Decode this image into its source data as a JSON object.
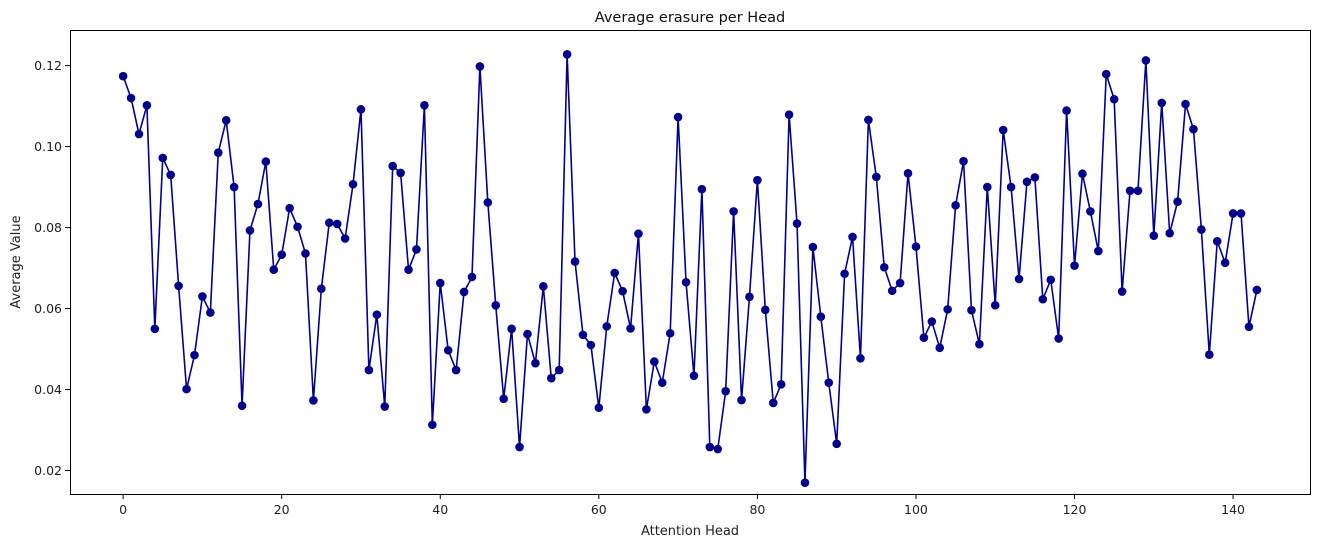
{
  "chart_data": {
    "type": "line",
    "title": "Average erasure per Head",
    "xlabel": "Attention Head",
    "ylabel": "Average Value",
    "xlim": [
      -6.7,
      149.7
    ],
    "ylim": [
      0.0142,
      0.1288
    ],
    "xticks": [
      0,
      20,
      40,
      60,
      80,
      100,
      120,
      140
    ],
    "yticks": [
      0.02,
      0.04,
      0.06,
      0.08,
      0.1,
      0.12
    ],
    "ytick_labels": [
      "0.02",
      "0.04",
      "0.06",
      "0.08",
      "0.10",
      "0.12"
    ],
    "grid": false,
    "color": "#00008b",
    "marker": "circle",
    "series": [
      {
        "values": [
          0.1174,
          0.112,
          0.1031,
          0.1102,
          0.055,
          0.0972,
          0.093,
          0.0656,
          0.0401,
          0.0485,
          0.063,
          0.059,
          0.0985,
          0.1065,
          0.09,
          0.036,
          0.0793,
          0.0858,
          0.0963,
          0.0696,
          0.0733,
          0.0848,
          0.0802,
          0.0736,
          0.0373,
          0.0649,
          0.0812,
          0.0809,
          0.0773,
          0.0907,
          0.1092,
          0.0448,
          0.0585,
          0.0358,
          0.0952,
          0.0935,
          0.0696,
          0.0746,
          0.1102,
          0.0313,
          0.0663,
          0.0497,
          0.0448,
          0.0641,
          0.0678,
          0.1198,
          0.0862,
          0.0608,
          0.0377,
          0.055,
          0.0258,
          0.0537,
          0.0465,
          0.0655,
          0.0428,
          0.0448,
          0.1228,
          0.0716,
          0.0535,
          0.051,
          0.0355,
          0.0556,
          0.0688,
          0.0643,
          0.0551,
          0.0785,
          0.0351,
          0.0469,
          0.0417,
          0.0539,
          0.1073,
          0.0665,
          0.0434,
          0.0895,
          0.0258,
          0.0253,
          0.0396,
          0.084,
          0.0374,
          0.0629,
          0.0917,
          0.0597,
          0.0367,
          0.0413,
          0.1079,
          0.081,
          0.017,
          0.0752,
          0.058,
          0.0417,
          0.0266,
          0.0686,
          0.0777,
          0.0477,
          0.1066,
          0.0925,
          0.0702,
          0.0644,
          0.0663,
          0.0934,
          0.0753,
          0.0528,
          0.0568,
          0.0503,
          0.0598,
          0.0855,
          0.0964,
          0.0596,
          0.0512,
          0.09,
          0.0608,
          0.1041,
          0.09,
          0.0673,
          0.0913,
          0.0924,
          0.0623,
          0.0671,
          0.0526,
          0.1089,
          0.0706,
          0.0933,
          0.084,
          0.0742,
          0.1179,
          0.1117,
          0.0642,
          0.0891,
          0.0891,
          0.1213,
          0.078,
          0.1108,
          0.0786,
          0.0864,
          0.1105,
          0.1043,
          0.0795,
          0.0486,
          0.0766,
          0.0713,
          0.0835,
          0.0835,
          0.0555,
          0.0646
        ]
      }
    ]
  }
}
